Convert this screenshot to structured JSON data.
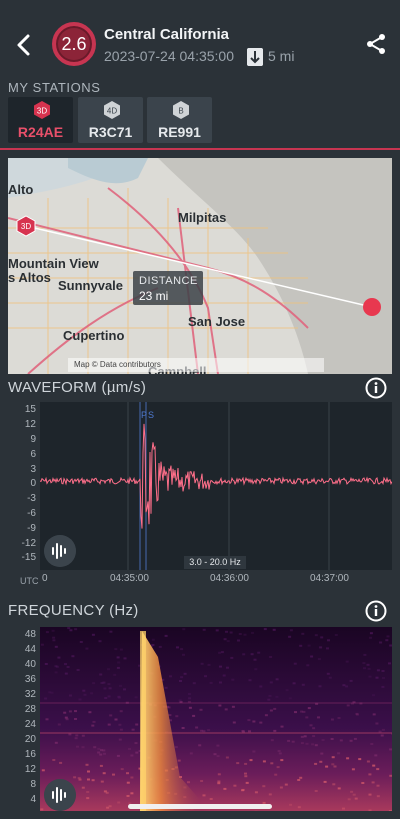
{
  "header": {
    "magnitude": "2.6",
    "region": "Central California",
    "datetime": "2023-07-24 04:35:00",
    "depth": "5 mi",
    "colors": {
      "magnitude_ring": "#c73551",
      "magnitude_fill": "#8c2438"
    }
  },
  "stations": {
    "label": "MY STATIONS",
    "items": [
      {
        "badge": "3D",
        "code": "R24AE",
        "active": true
      },
      {
        "badge": "4D",
        "code": "R3C71",
        "active": false
      },
      {
        "badge": "B",
        "code": "RE991",
        "active": false
      }
    ]
  },
  "map": {
    "labels": [
      "Alto",
      "Milpitas",
      "Mountain View",
      "s Altos",
      "Sunnyvale",
      "Cupertino",
      "San Jose",
      "Campbell"
    ],
    "distance_label": "DISTANCE",
    "distance_value": "23 mi",
    "station_badge": "3D",
    "attribution": "Map  © Data   contributors"
  },
  "waveform": {
    "title": "WAVEFORM (µm/s)",
    "y_ticks": [
      "15",
      "12",
      "9",
      "6",
      "3",
      "0",
      "-3",
      "-6",
      "-9",
      "-12",
      "-15"
    ],
    "x_ticks": [
      "0",
      "04:35:00",
      "04:36:00",
      "04:37:00"
    ],
    "utc_label": "UTC",
    "filter": "3.0 - 20.0 Hz",
    "markers": [
      "P",
      "S"
    ],
    "color": "#ff6f8a"
  },
  "frequency": {
    "title": "FREQUENCY (Hz)",
    "y_ticks": [
      "48",
      "44",
      "40",
      "36",
      "32",
      "28",
      "24",
      "20",
      "16",
      "12",
      "8",
      "4"
    ]
  }
}
